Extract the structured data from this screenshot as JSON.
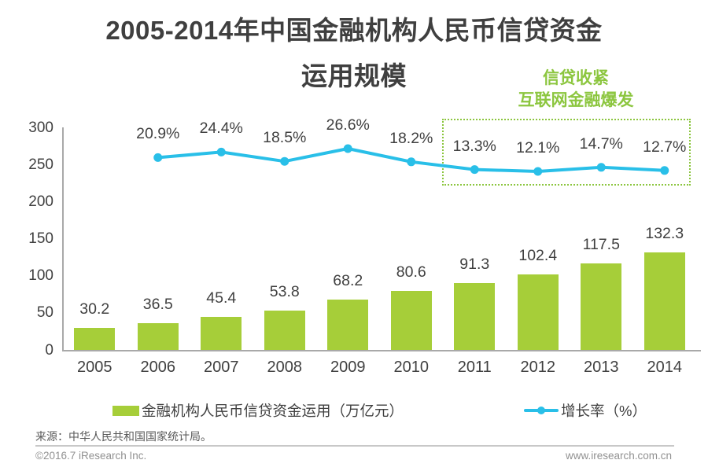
{
  "title": {
    "line1": "2005-2014年中国金融机构人民币信贷资金",
    "line2": "运用规模"
  },
  "annotation": {
    "line1": "信贷收紧",
    "line2": "互联网金融爆发",
    "box_covers_years": [
      "2011",
      "2012",
      "2013",
      "2014"
    ]
  },
  "chart_data": {
    "type": "bar",
    "subtype": "bar+line combo",
    "title": "2005-2014年中国金融机构人民币信贷资金运用规模",
    "categories": [
      "2005",
      "2006",
      "2007",
      "2008",
      "2009",
      "2010",
      "2011",
      "2012",
      "2013",
      "2014"
    ],
    "series": [
      {
        "name": "金融机构人民币信贷资金运用（万亿元）",
        "type": "bar",
        "color": "#a6ce39",
        "values": [
          30.2,
          36.5,
          45.4,
          53.8,
          68.2,
          80.6,
          91.3,
          102.4,
          117.5,
          132.3
        ],
        "labels": [
          "30.2",
          "36.5",
          "45.4",
          "53.8",
          "68.2",
          "80.6",
          "91.3",
          "102.4",
          "117.5",
          "132.3"
        ]
      },
      {
        "name": "增长率（%）",
        "type": "line",
        "color": "#29bfe8",
        "values": [
          null,
          20.9,
          24.4,
          18.5,
          26.6,
          18.2,
          13.3,
          12.1,
          14.7,
          12.7
        ],
        "labels": [
          "",
          "20.9%",
          "24.4%",
          "18.5%",
          "26.6%",
          "18.2%",
          "13.3%",
          "12.1%",
          "14.7%",
          "12.7%"
        ]
      }
    ],
    "y_axis": {
      "min": 0,
      "max": 300,
      "ticks": [
        0,
        50,
        100,
        150,
        200,
        250,
        300
      ]
    },
    "grid": false,
    "legend_position": "bottom"
  },
  "legend": {
    "bar_label": "金融机构人民币信贷资金运用（万亿元）",
    "line_label": "增长率（%）"
  },
  "footer": {
    "source": "来源：中华人民共和国国家统计局。",
    "copyright": "©2016.7 iResearch Inc.",
    "website": "www.iresearch.com.cn"
  },
  "colors": {
    "bar": "#a6ce39",
    "line": "#29bfe8",
    "annotation_green": "#8cc63f",
    "axis_gray": "#a9a9a9",
    "text_dark": "#404040"
  }
}
